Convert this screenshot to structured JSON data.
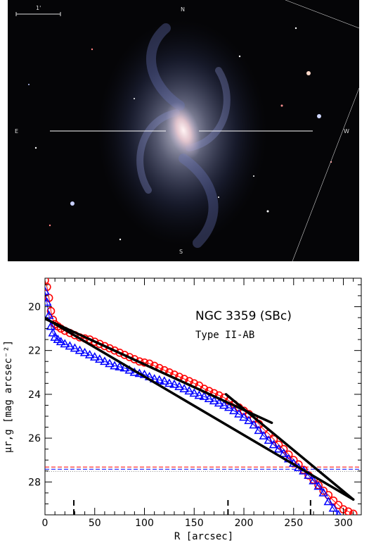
{
  "image_panel": {
    "compass_north": "N",
    "compass_east": "E",
    "compass_west": "W",
    "compass_south": "S",
    "scale_label": "1'"
  },
  "chart_data": {
    "type": "scatter",
    "title": "NGC 3359 (SBc)",
    "subtitle": "Type II-AB",
    "xlabel": "R [arcsec]",
    "ylabel": "μr,g [mag arcsec⁻²]",
    "xlim": [
      0,
      318
    ],
    "ylim": [
      29.5,
      18.7
    ],
    "yaxis_inverted": true,
    "xticks": [
      0,
      50,
      100,
      150,
      200,
      250,
      300
    ],
    "yticks": [
      20,
      22,
      24,
      26,
      28
    ],
    "series": [
      {
        "color": "#ff0000",
        "marker": "circle",
        "x": [
          0,
          2,
          4,
          6,
          8,
          10,
          13,
          16,
          20,
          25,
          30,
          35,
          40,
          45,
          50,
          55,
          60,
          65,
          70,
          75,
          80,
          85,
          90,
          95,
          100,
          105,
          110,
          115,
          120,
          125,
          130,
          135,
          140,
          145,
          150,
          155,
          160,
          165,
          170,
          175,
          180,
          185,
          190,
          195,
          200,
          205,
          210,
          215,
          220,
          225,
          230,
          235,
          240,
          245,
          250,
          255,
          260,
          265,
          270,
          275,
          280,
          285,
          290,
          295,
          300,
          305,
          310
        ],
        "y": [
          18.8,
          19.1,
          19.6,
          20.2,
          20.6,
          20.8,
          20.9,
          21.0,
          21.1,
          21.2,
          21.3,
          21.4,
          21.45,
          21.5,
          21.6,
          21.7,
          21.8,
          21.9,
          22.0,
          22.1,
          22.2,
          22.3,
          22.4,
          22.5,
          22.55,
          22.6,
          22.7,
          22.8,
          22.9,
          23.0,
          23.1,
          23.2,
          23.3,
          23.4,
          23.5,
          23.6,
          23.75,
          23.85,
          23.95,
          24.05,
          24.15,
          24.3,
          24.45,
          24.6,
          24.75,
          24.9,
          25.1,
          25.35,
          25.6,
          25.8,
          26.05,
          26.3,
          26.5,
          26.75,
          27.0,
          27.2,
          27.45,
          27.7,
          27.9,
          28.15,
          28.4,
          28.6,
          28.85,
          29.05,
          29.25,
          29.35,
          29.45
        ]
      },
      {
        "color": "#0000ff",
        "marker": "triangle",
        "x": [
          0,
          2,
          4,
          6,
          8,
          10,
          13,
          16,
          20,
          25,
          30,
          35,
          40,
          45,
          50,
          55,
          60,
          65,
          70,
          75,
          80,
          85,
          90,
          95,
          100,
          105,
          110,
          115,
          120,
          125,
          130,
          135,
          140,
          145,
          150,
          155,
          160,
          165,
          170,
          175,
          180,
          185,
          190,
          195,
          200,
          205,
          210,
          215,
          220,
          225,
          230,
          235,
          240,
          245,
          250,
          255,
          260,
          265,
          270,
          275,
          280,
          285,
          290,
          295,
          300,
          305,
          310
        ],
        "y": [
          19.3,
          19.8,
          20.4,
          20.9,
          21.2,
          21.4,
          21.5,
          21.6,
          21.7,
          21.8,
          21.9,
          22.0,
          22.1,
          22.2,
          22.3,
          22.4,
          22.5,
          22.6,
          22.7,
          22.75,
          22.8,
          22.9,
          23.0,
          23.05,
          23.1,
          23.2,
          23.3,
          23.35,
          23.4,
          23.5,
          23.55,
          23.65,
          23.75,
          23.85,
          23.95,
          24.05,
          24.1,
          24.2,
          24.3,
          24.4,
          24.5,
          24.6,
          24.75,
          24.9,
          25.05,
          25.2,
          25.4,
          25.65,
          25.9,
          26.1,
          26.3,
          26.5,
          26.7,
          26.95,
          27.15,
          27.35,
          27.5,
          27.7,
          27.95,
          28.2,
          28.5,
          28.9,
          29.2,
          29.5,
          29.7,
          29.8,
          29.9
        ]
      }
    ],
    "fits": [
      {
        "x": [
          0,
          310
        ],
        "y": [
          20.52,
          28.8
        ]
      },
      {
        "x": [
          0,
          228
        ],
        "y": [
          20.55,
          25.3
        ]
      },
      {
        "x": [
          182,
          310
        ],
        "y": [
          24.0,
          28.8
        ]
      }
    ],
    "limits": [
      {
        "y": 27.32,
        "color": "#ff0000",
        "style": "dashed"
      },
      {
        "y": 27.42,
        "color": "#0000ff",
        "style": "dashed"
      },
      {
        "y": 27.52,
        "color": "#888888",
        "style": "dotted"
      }
    ],
    "breaks_x": [
      29,
      184,
      267
    ]
  }
}
